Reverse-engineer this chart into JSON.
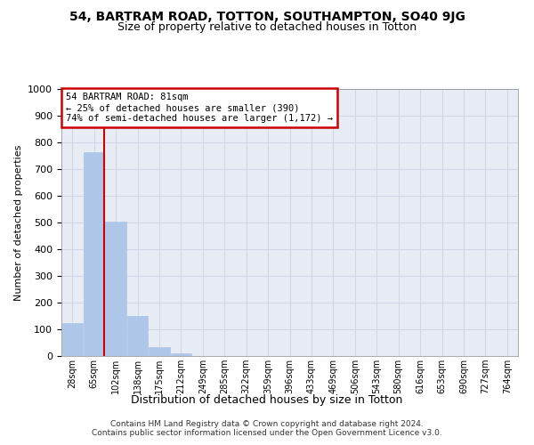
{
  "title1": "54, BARTRAM ROAD, TOTTON, SOUTHAMPTON, SO40 9JG",
  "title2": "Size of property relative to detached houses in Totton",
  "xlabel": "Distribution of detached houses by size in Totton",
  "ylabel": "Number of detached properties",
  "bin_labels": [
    "28sqm",
    "65sqm",
    "102sqm",
    "138sqm",
    "175sqm",
    "212sqm",
    "249sqm",
    "285sqm",
    "322sqm",
    "359sqm",
    "396sqm",
    "433sqm",
    "469sqm",
    "506sqm",
    "543sqm",
    "580sqm",
    "616sqm",
    "653sqm",
    "690sqm",
    "727sqm",
    "764sqm"
  ],
  "bar_heights": [
    125,
    762,
    505,
    150,
    35,
    10,
    0,
    0,
    0,
    0,
    0,
    0,
    0,
    0,
    0,
    0,
    0,
    0,
    0,
    0,
    0
  ],
  "bar_color": "#aec6e8",
  "bar_edge_color": "#aec6e8",
  "grid_color": "#d0d8e8",
  "bg_color": "#e8edf5",
  "vline_color": "#cc0000",
  "annotation_text": "54 BARTRAM ROAD: 81sqm\n← 25% of detached houses are smaller (390)\n74% of semi-detached houses are larger (1,172) →",
  "annotation_box_edge_color": "#cc0000",
  "footer1": "Contains HM Land Registry data © Crown copyright and database right 2024.",
  "footer2": "Contains public sector information licensed under the Open Government Licence v3.0.",
  "ylim": [
    0,
    1000
  ],
  "yticks": [
    0,
    100,
    200,
    300,
    400,
    500,
    600,
    700,
    800,
    900,
    1000
  ]
}
